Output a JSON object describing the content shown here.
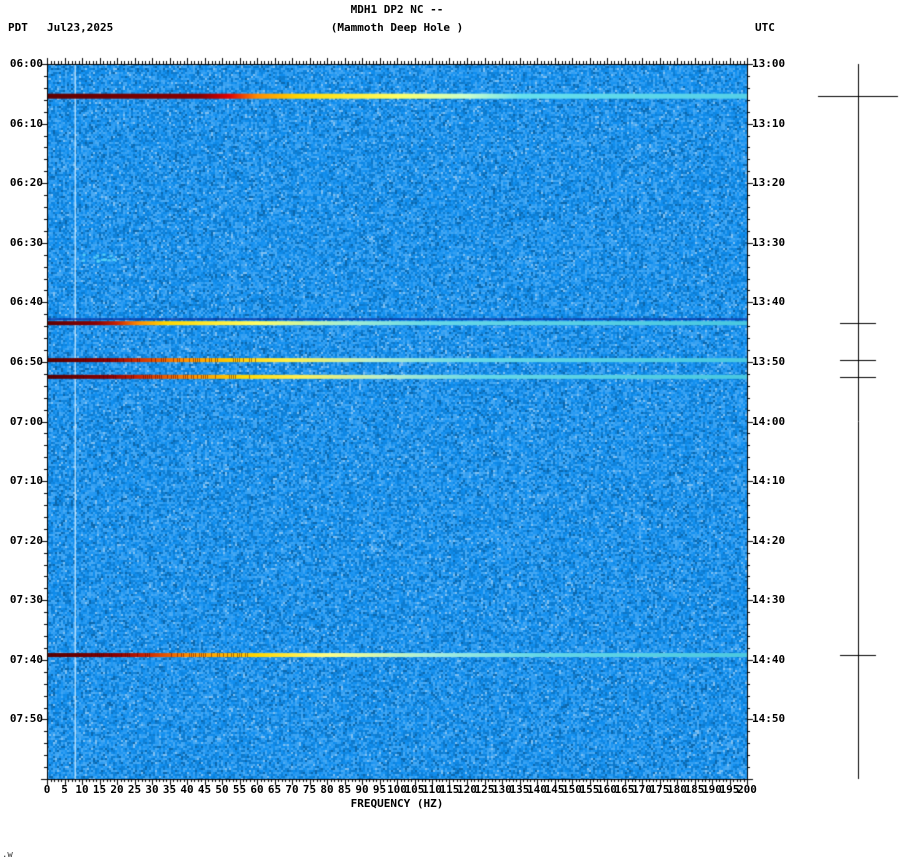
{
  "header": {
    "title_line1": "MDH1 DP2 NC --",
    "title_line2": "(Mammoth Deep Hole )",
    "left_tz": "PDT",
    "date": "Jul23,2025",
    "right_tz": "UTC"
  },
  "chart_data": {
    "type": "heatmap",
    "title": "MDH1 DP2 NC -- (Mammoth Deep Hole )",
    "xlabel": "FREQUENCY (HZ)",
    "x_min_hz": 0,
    "x_max_hz": 200,
    "x_major_step_hz": 5,
    "x_minor_step_hz": 1,
    "time_start_pdt": "06:00",
    "time_start_utc": "13:00",
    "time_span_min": 120,
    "time_major_step_min": 10,
    "time_minor_step_min": 2,
    "x_tick_labels": [
      "0",
      "5",
      "10",
      "15",
      "20",
      "25",
      "30",
      "35",
      "40",
      "45",
      "50",
      "55",
      "60",
      "65",
      "70",
      "75",
      "80",
      "85",
      "90",
      "95",
      "100",
      "105",
      "110",
      "115",
      "120",
      "125",
      "130",
      "135",
      "140",
      "145",
      "150",
      "155",
      "160",
      "165",
      "170",
      "175",
      "180",
      "185",
      "190",
      "195",
      "200"
    ],
    "left_tick_labels": [
      "06:00",
      "06:10",
      "06:20",
      "06:30",
      "06:40",
      "06:50",
      "07:00",
      "07:10",
      "07:20",
      "07:30",
      "07:40",
      "07:50"
    ],
    "right_tick_labels": [
      "13:00",
      "13:10",
      "13:20",
      "13:30",
      "13:40",
      "13:50",
      "14:00",
      "14:10",
      "14:20",
      "14:30",
      "14:40",
      "14:50"
    ],
    "background": "random blue broadband noise",
    "tonal_line": {
      "hz": 8,
      "color": "#d7f0ff"
    },
    "blips": [
      {
        "minute": 32.4,
        "hz_from": 10,
        "hz_to": 26
      }
    ],
    "events": [
      {
        "pdt": "06:05",
        "utc": "13:05",
        "minute": 5.4,
        "thickness": 5,
        "strength": "strong",
        "scalebar_halfwidth": 40,
        "striated": false,
        "shadow_above": false,
        "color_stops": [
          [
            0,
            "#600000"
          ],
          [
            0.22,
            "#8b0000"
          ],
          [
            0.26,
            "#e00000"
          ],
          [
            0.3,
            "#ff8c00"
          ],
          [
            0.36,
            "#ffd700"
          ],
          [
            0.5,
            "#ffff66"
          ],
          [
            0.6,
            "#ccffcc"
          ],
          [
            0.68,
            "#66e0ee"
          ],
          [
            1,
            "#55d0e8"
          ]
        ]
      },
      {
        "pdt": "06:43",
        "utc": "13:43",
        "minute": 43.5,
        "thickness": 4,
        "strength": "moderate",
        "scalebar_halfwidth": 18,
        "striated": false,
        "shadow_above": true,
        "color_stops": [
          [
            0,
            "#600000"
          ],
          [
            0.07,
            "#8b0000"
          ],
          [
            0.1,
            "#cc2200"
          ],
          [
            0.13,
            "#ff8c00"
          ],
          [
            0.17,
            "#ffd700"
          ],
          [
            0.3,
            "#ffff66"
          ],
          [
            0.42,
            "#aaf0d0"
          ],
          [
            0.55,
            "#66d8e8"
          ],
          [
            1,
            "#49c8e0"
          ]
        ]
      },
      {
        "pdt": "06:50",
        "utc": "13:50",
        "minute": 49.7,
        "thickness": 4,
        "strength": "moderate",
        "scalebar_halfwidth": 18,
        "striated": true,
        "shadow_above": false,
        "color_stops": [
          [
            0,
            "#580000"
          ],
          [
            0.09,
            "#8b0000"
          ],
          [
            0.13,
            "#d03000"
          ],
          [
            0.19,
            "#ff8c00"
          ],
          [
            0.26,
            "#ffc800"
          ],
          [
            0.34,
            "#ffee44"
          ],
          [
            0.46,
            "#bbeecc"
          ],
          [
            0.6,
            "#66d8e8"
          ],
          [
            1,
            "#49c8e0"
          ]
        ]
      },
      {
        "pdt": "06:52",
        "utc": "13:52",
        "minute": 52.5,
        "thickness": 4,
        "strength": "moderate",
        "scalebar_halfwidth": 18,
        "striated": true,
        "shadow_above": false,
        "color_stops": [
          [
            0,
            "#580000"
          ],
          [
            0.09,
            "#8b0000"
          ],
          [
            0.13,
            "#cc2200"
          ],
          [
            0.2,
            "#ff8c00"
          ],
          [
            0.28,
            "#ffd700"
          ],
          [
            0.36,
            "#ffee55"
          ],
          [
            0.48,
            "#bbeecc"
          ],
          [
            0.62,
            "#66d8e8"
          ],
          [
            1,
            "#49c8e0"
          ]
        ]
      },
      {
        "pdt": "07:39",
        "utc": "14:39",
        "minute": 99.2,
        "thickness": 4,
        "strength": "moderate",
        "scalebar_halfwidth": 18,
        "striated": true,
        "shadow_above": false,
        "color_stops": [
          [
            0,
            "#580000"
          ],
          [
            0.1,
            "#8b0000"
          ],
          [
            0.14,
            "#cc2200"
          ],
          [
            0.2,
            "#ff8c00"
          ],
          [
            0.3,
            "#ffd700"
          ],
          [
            0.4,
            "#ffff88"
          ],
          [
            0.55,
            "#aaeedd"
          ],
          [
            0.7,
            "#66d8e8"
          ],
          [
            1,
            "#4cc8e0"
          ]
        ]
      }
    ]
  },
  "footer": {
    "corner_text": ".w"
  }
}
